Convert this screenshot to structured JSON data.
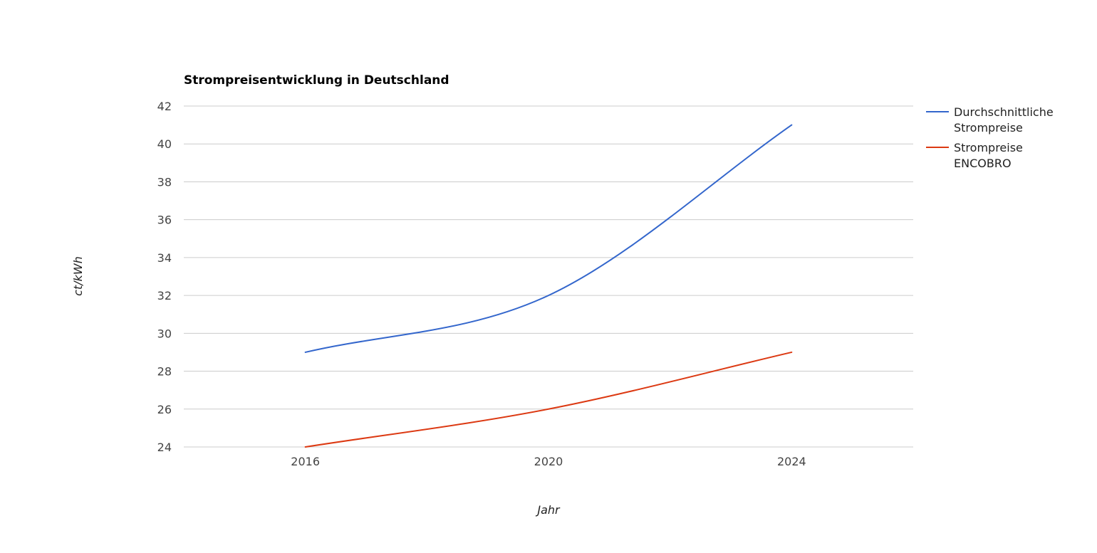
{
  "chart_data": {
    "type": "line",
    "title": "Strompreisentwicklung in Deutschland",
    "xlabel": "Jahr",
    "ylabel": "ct/kWh",
    "x": [
      2016,
      2020,
      2024
    ],
    "x_ticks": [
      "2016",
      "2020",
      "2024"
    ],
    "xlim": [
      2014,
      2026
    ],
    "ylim": [
      24,
      42
    ],
    "y_ticks": [
      24,
      26,
      28,
      30,
      32,
      34,
      36,
      38,
      40,
      42
    ],
    "grid": true,
    "smooth": true,
    "legend_position": "right",
    "series": [
      {
        "name_lines": [
          "Durchschnittliche",
          "Strompreise"
        ],
        "color": "#3366cc",
        "values": [
          29,
          32,
          41
        ]
      },
      {
        "name_lines": [
          "Strompreise",
          "ENCOBRO"
        ],
        "color": "#dc3912",
        "values": [
          24,
          26,
          29
        ]
      }
    ]
  }
}
